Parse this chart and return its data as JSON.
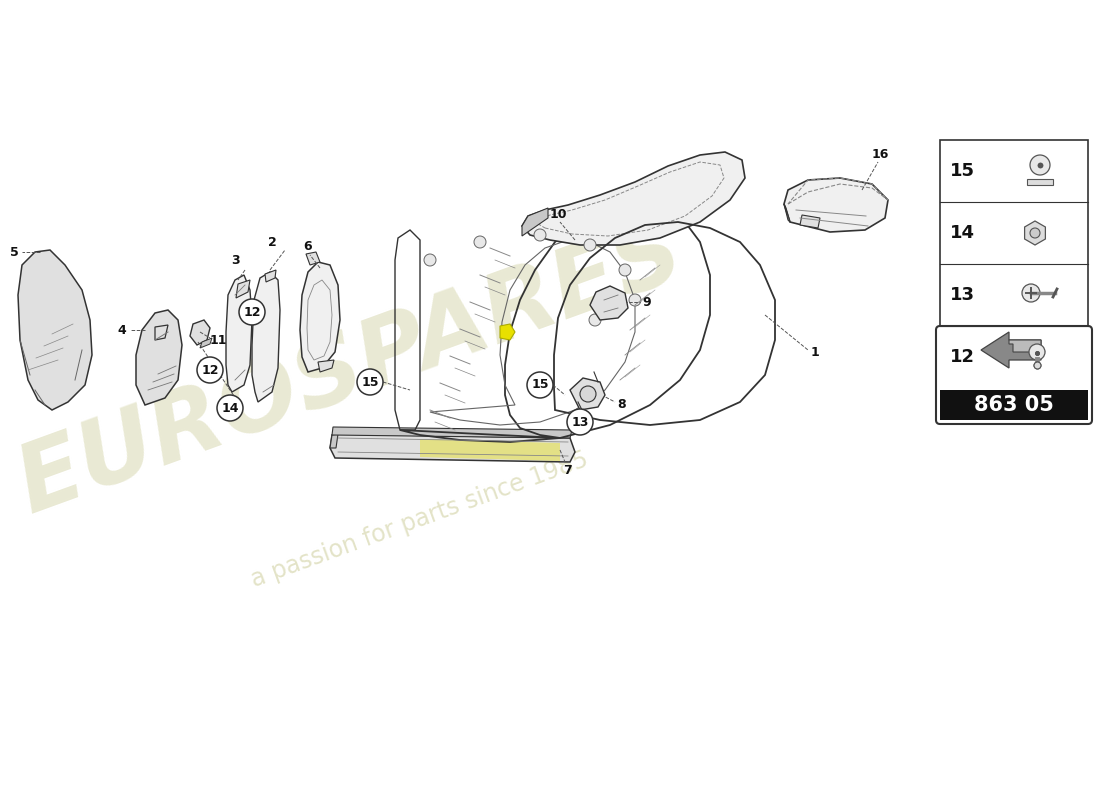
{
  "bg_color": "#ffffff",
  "watermark_text1": "EUROSPARES",
  "watermark_text2": "a passion for parts since 1985",
  "watermark_color_hex": "#d8d8b0",
  "part_number_box": "863 05",
  "fig_width": 11.0,
  "fig_height": 8.0,
  "dpi": 100,
  "line_color": "#333333",
  "light_fill": "#f0f0f0",
  "mid_fill": "#e0e0e0",
  "dark_fill": "#c8c8c8",
  "yellow_accent": "#e8e000"
}
